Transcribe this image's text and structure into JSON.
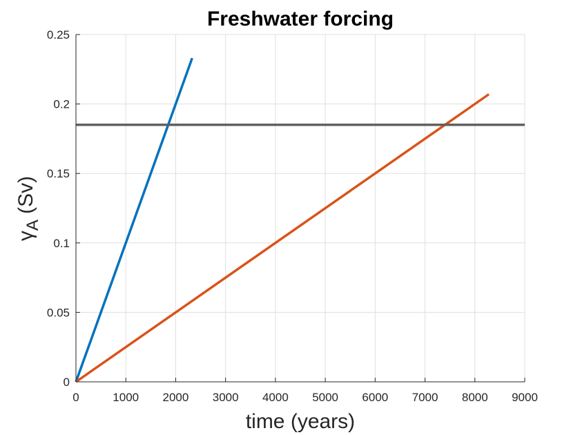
{
  "chart_data": {
    "type": "line",
    "title": "Freshwater forcing",
    "xlabel": "time (years)",
    "ylabel_symbol": "γ",
    "ylabel_subscript": "A",
    "ylabel_unit": " (Sv)",
    "xlim": [
      0,
      9000
    ],
    "ylim": [
      0,
      0.25
    ],
    "xticks": [
      0,
      1000,
      2000,
      3000,
      4000,
      5000,
      6000,
      7000,
      8000,
      9000
    ],
    "xtick_labels": [
      "0",
      "1000",
      "2000",
      "3000",
      "4000",
      "5000",
      "6000",
      "7000",
      "8000",
      "9000"
    ],
    "yticks": [
      0,
      0.05,
      0.1,
      0.15,
      0.2,
      0.25
    ],
    "ytick_labels": [
      "0",
      "0.05",
      "0.1",
      "0.15",
      "0.2",
      "0.25"
    ],
    "grid": true,
    "series": [
      {
        "color": "#0072BD",
        "x": [
          0,
          2330
        ],
        "y": [
          0,
          0.233
        ]
      },
      {
        "color": "#D95319",
        "x": [
          0,
          8280
        ],
        "y": [
          0,
          0.207
        ]
      },
      {
        "color": "#606060",
        "x": [
          0,
          9000
        ],
        "y": [
          0.185,
          0.185
        ]
      }
    ]
  }
}
